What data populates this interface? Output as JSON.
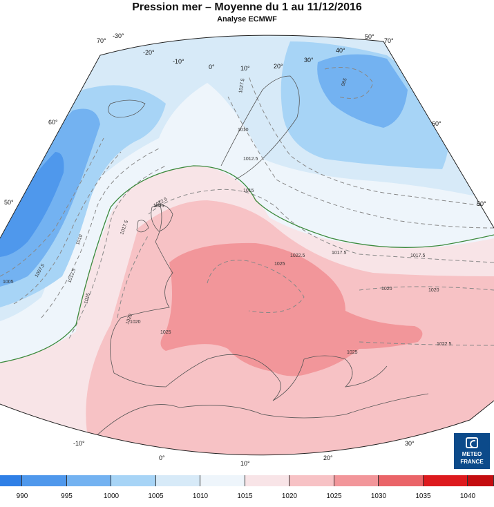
{
  "header": {
    "title": "Pression mer – Moyenne du 1 au 11/12/2016",
    "subtitle": "Analyse ECMWF"
  },
  "legend": {
    "labels": [
      "990",
      "995",
      "1000",
      "1005",
      "1010",
      "1015",
      "1020",
      "1025",
      "1030",
      "1035",
      "1040"
    ],
    "colors": [
      "#2f7fe6",
      "#4f98ec",
      "#73b2f1",
      "#a7d4f6",
      "#d7eaf8",
      "#eef5fb",
      "#f8e4e7",
      "#f7c2c5",
      "#f2969a",
      "#ea6468",
      "#dd1a1e",
      "#c40d10"
    ]
  },
  "graticule": {
    "meridian_labels_top": [
      "-30°",
      "-20°",
      "-10°",
      "0°",
      "10°",
      "20°",
      "30°",
      "40°",
      "50°"
    ],
    "meridian_labels_bottom": [
      "-10°",
      "0°",
      "10°",
      "20°",
      "30°"
    ],
    "lat_labels_left": [
      "70°",
      "60°",
      "50°"
    ],
    "lat_labels_right": [
      "70°",
      "60°",
      "50°"
    ]
  },
  "isobar_labels": [
    "1005",
    "1007.5",
    "1010",
    "1012.5",
    "1015",
    "1017.5",
    "1020",
    "1022.5",
    "1025",
    "1027.5",
    "1010",
    "1012.5",
    "1015",
    "1017.5",
    "1020",
    "1022.5",
    "1025",
    "1022.5",
    "1020",
    "1017.5",
    "1025",
    "1025",
    "1020",
    "985"
  ],
  "logo": {
    "line1": "METEO",
    "line2": "FRANCE"
  }
}
